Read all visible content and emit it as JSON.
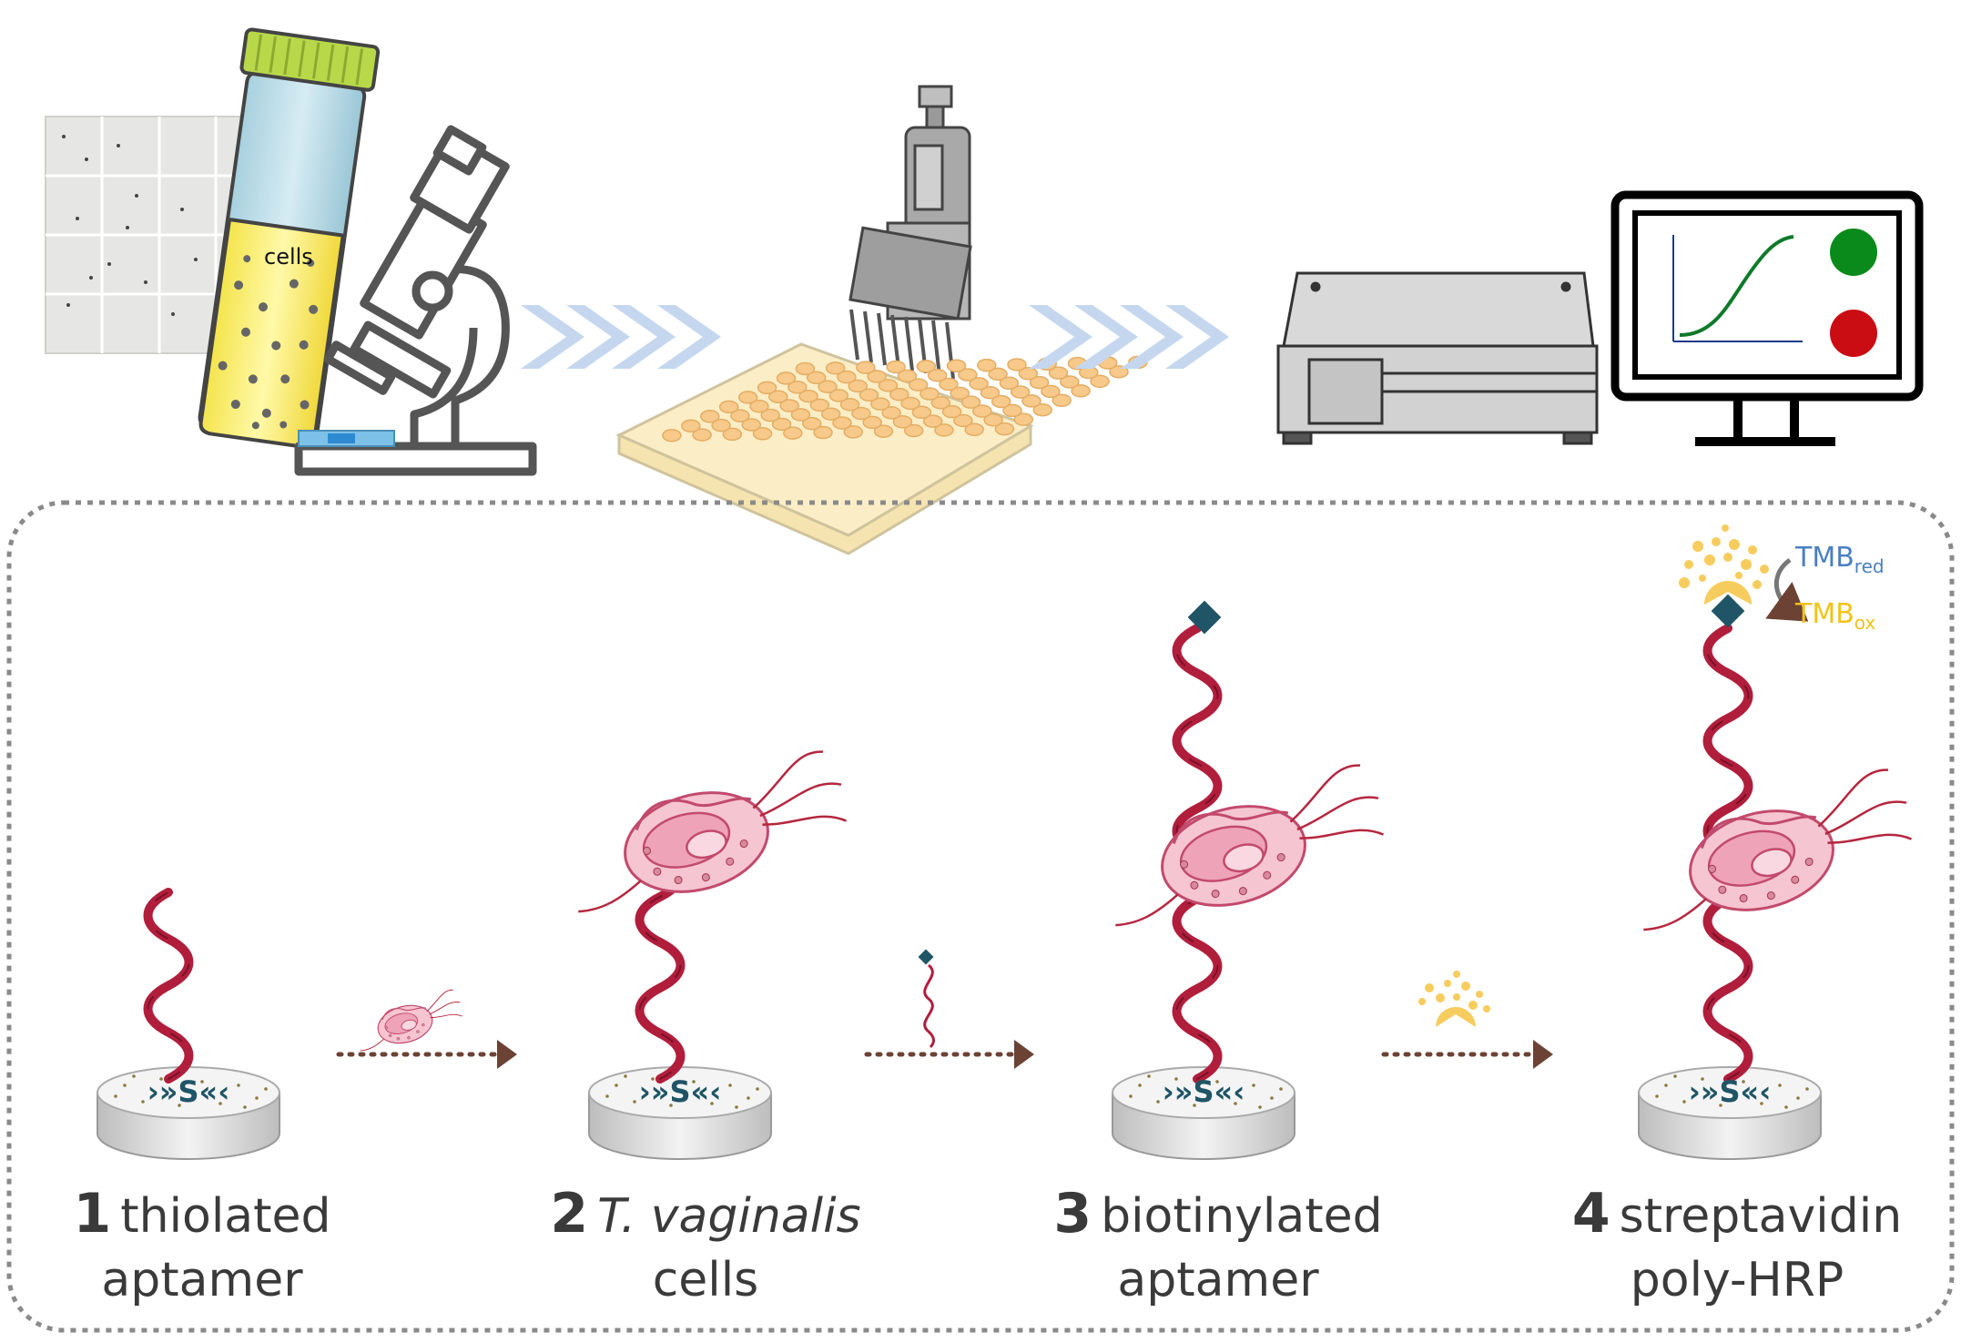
{
  "tube_label": "cells",
  "disk_label": "›»S«‹",
  "steps": [
    {
      "number": "1",
      "line1": "thiolated",
      "line2": "aptamer"
    },
    {
      "number": "2",
      "line1": "T. vaginalis",
      "line2": "cells"
    },
    {
      "number": "3",
      "line1": "biotinylated",
      "line2": "aptamer"
    },
    {
      "number": "4",
      "line1": "streptavidin",
      "line2": "poly-HRP"
    }
  ],
  "tmb": {
    "red_base": "TMB",
    "red_sub": "red",
    "ox_base": "TMB",
    "ox_sub": "ox"
  },
  "colors": {
    "aptamer": "#b01e3c",
    "biotin": "#1f5566",
    "arrow": "#6b4234",
    "chevron": "#c5d7ef",
    "tmb_red": "#4a7fc1",
    "tmb_ox": "#f2c21b",
    "hrp": "#f7cc5e",
    "dot_green": "#0a8a1a",
    "dot_red": "#c90d12"
  }
}
